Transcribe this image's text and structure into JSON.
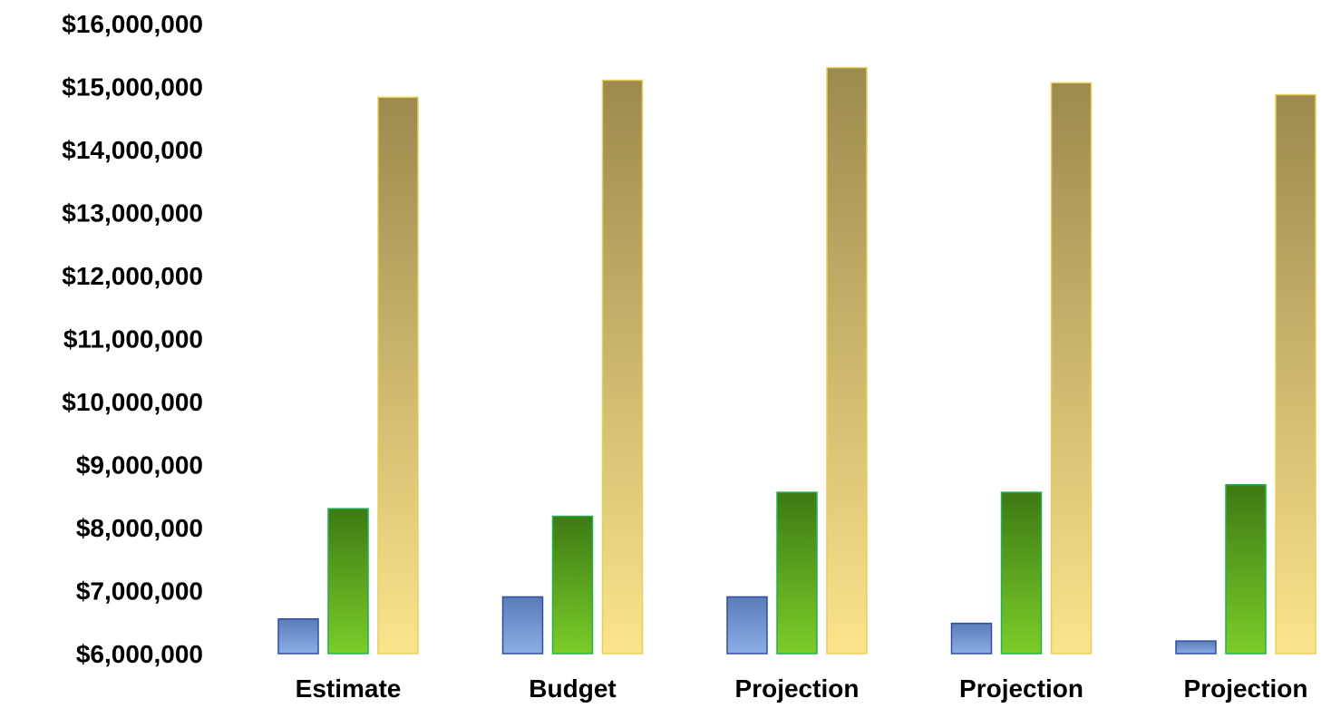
{
  "chart_data": {
    "type": "bar",
    "title": "",
    "xlabel": "",
    "ylabel": "",
    "ylim": [
      6000000,
      16000000
    ],
    "yticks": [
      "$16,000,000",
      "$15,000,000",
      "$14,000,000",
      "$13,000,000",
      "$12,000,000",
      "$11,000,000",
      "$10,000,000",
      "$9,000,000",
      "$8,000,000",
      "$7,000,000",
      "$6,000,000"
    ],
    "categories": [
      "Estimate",
      "Budget",
      "Projection",
      "Projection",
      "Projection"
    ],
    "series": [
      {
        "values": [
          6550000,
          6900000,
          6900000,
          6480000,
          6200000
        ],
        "color": "#5b7cb8",
        "color_light": "#8aaee6",
        "stroke": "#2f4f9e"
      },
      {
        "values": [
          8300000,
          8180000,
          8560000,
          8560000,
          8680000
        ],
        "color": "#3d7a14",
        "color_light": "#7ccc2a",
        "stroke": "#22b14c"
      },
      {
        "values": [
          14830000,
          15100000,
          15300000,
          15060000,
          14870000
        ],
        "color": "#9c8a4e",
        "color_light": "#fce48c",
        "stroke": "#e8cf5a"
      }
    ],
    "grid": false,
    "legend": "none"
  }
}
